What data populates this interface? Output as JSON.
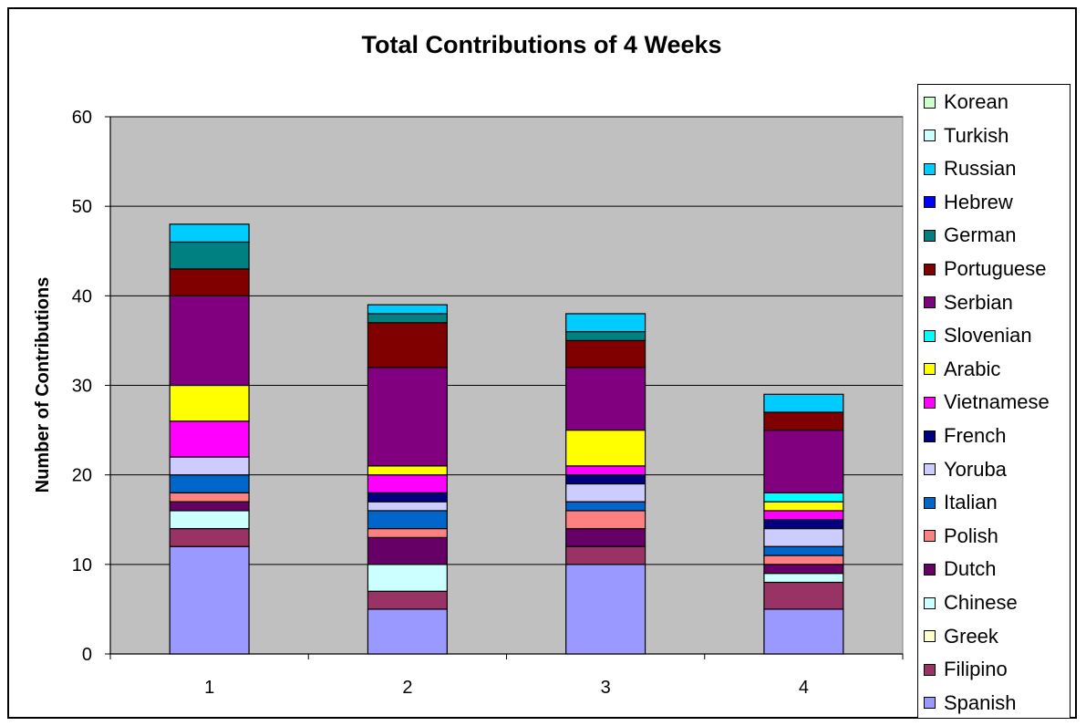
{
  "chart_data": {
    "type": "bar",
    "stacked": true,
    "title": "Total Contributions of 4 Weeks",
    "xlabel": "",
    "ylabel": "Number of Contributions",
    "ylim": [
      0,
      60
    ],
    "yticks": [
      0,
      10,
      20,
      30,
      40,
      50,
      60
    ],
    "categories": [
      "1",
      "2",
      "3",
      "4"
    ],
    "grid": true,
    "legend_position": "right",
    "plot_background": "#c0c0c0",
    "series": [
      {
        "name": "Spanish",
        "color": "#9999ff",
        "values": [
          12,
          5,
          10,
          5
        ]
      },
      {
        "name": "Filipino",
        "color": "#993366",
        "values": [
          2,
          2,
          2,
          3
        ]
      },
      {
        "name": "Greek",
        "color": "#ffffcc",
        "values": [
          0,
          0,
          0,
          0
        ]
      },
      {
        "name": "Chinese",
        "color": "#ccffff",
        "values": [
          2,
          3,
          0,
          1
        ]
      },
      {
        "name": "Dutch",
        "color": "#660066",
        "values": [
          1,
          3,
          2,
          1
        ]
      },
      {
        "name": "Polish",
        "color": "#ff8080",
        "values": [
          1,
          1,
          2,
          1
        ]
      },
      {
        "name": "Italian",
        "color": "#0066cc",
        "values": [
          2,
          2,
          1,
          1
        ]
      },
      {
        "name": "Yoruba",
        "color": "#ccccff",
        "values": [
          2,
          1,
          2,
          2
        ]
      },
      {
        "name": "French",
        "color": "#000080",
        "values": [
          0,
          1,
          1,
          1
        ]
      },
      {
        "name": "Vietnamese",
        "color": "#ff00ff",
        "values": [
          4,
          2,
          1,
          1
        ]
      },
      {
        "name": "Arabic",
        "color": "#ffff00",
        "values": [
          4,
          1,
          4,
          1
        ]
      },
      {
        "name": "Slovenian",
        "color": "#00ffff",
        "values": [
          0,
          0,
          0,
          1
        ]
      },
      {
        "name": "Serbian",
        "color": "#800080",
        "values": [
          10,
          11,
          7,
          7
        ]
      },
      {
        "name": "Portuguese",
        "color": "#800000",
        "values": [
          3,
          5,
          3,
          2
        ]
      },
      {
        "name": "German",
        "color": "#008080",
        "values": [
          3,
          1,
          1,
          0
        ]
      },
      {
        "name": "Hebrew",
        "color": "#0000ff",
        "values": [
          0,
          0,
          0,
          0
        ]
      },
      {
        "name": "Russian",
        "color": "#00ccff",
        "values": [
          2,
          1,
          2,
          2
        ]
      },
      {
        "name": "Turkish",
        "color": "#ccffff",
        "values": [
          0,
          0,
          0,
          0
        ]
      },
      {
        "name": "Korean",
        "color": "#ccffcc",
        "values": [
          0,
          0,
          0,
          0
        ]
      }
    ]
  }
}
